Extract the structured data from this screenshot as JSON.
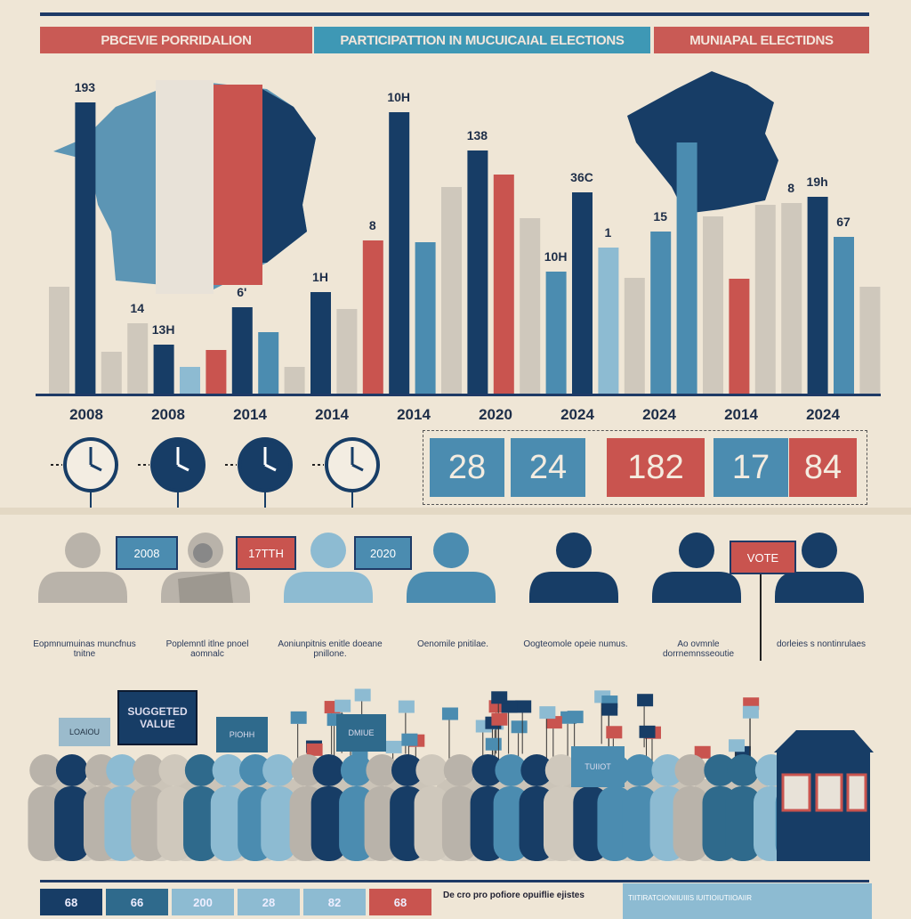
{
  "header": {
    "left": "PBCEVIE PORRIDALION",
    "center": "PARTICIPATTION IN MUCUICAIAL ELECTIONS",
    "right": "MUNIAPAL ELECTIDNS"
  },
  "colors": {
    "navy": "#173d66",
    "blue": "#4b8cb0",
    "light": "#8dbbd2",
    "gray": "#cfc8bc",
    "red": "#c9544f",
    "cream": "#efe6d6"
  },
  "chart_data": {
    "type": "bar",
    "values": [
      121,
      328,
      48,
      80,
      56,
      31,
      50,
      98,
      70,
      31,
      115,
      96,
      173,
      317,
      171,
      233,
      274,
      247,
      198,
      138,
      227,
      165,
      131,
      183,
      283,
      200,
      130,
      213,
      215,
      222,
      177,
      121
    ],
    "bar_colors": [
      "gray",
      "navy",
      "gray",
      "gray",
      "navy",
      "light",
      "red",
      "navy",
      "blue",
      "gray",
      "navy",
      "gray",
      "red",
      "navy",
      "blue",
      "gray",
      "navy",
      "red",
      "gray",
      "blue",
      "navy",
      "light",
      "gray",
      "blue",
      "blue",
      "gray",
      "red",
      "gray",
      "gray",
      "navy",
      "blue",
      "gray"
    ],
    "value_labels": [
      "",
      "193",
      "",
      "14",
      "13H",
      "",
      "",
      "6'",
      "",
      "",
      "1H",
      "",
      "8",
      "10H",
      "",
      "",
      "138",
      "",
      "",
      "10H",
      "36C",
      "1",
      "",
      "15",
      "",
      "",
      "",
      "",
      "8",
      "19h",
      "67",
      ""
    ],
    "x_tick_labels": [
      "2008",
      "2008",
      "2014",
      "2014",
      "2014",
      "2020",
      "2024",
      "2024",
      "2014",
      "2024"
    ]
  },
  "timeline": {
    "clocks": 4,
    "boxes": [
      {
        "v": "28",
        "c": "blue"
      },
      {
        "v": "24",
        "c": "blue"
      },
      {
        "v": "182",
        "c": "red"
      },
      {
        "v": "17",
        "c": "blue"
      },
      {
        "v": "84",
        "c": "red"
      }
    ]
  },
  "people": {
    "tags": [
      "2008",
      "17TTH",
      "2020",
      "VOTE"
    ],
    "figures": [
      "gray",
      "gray",
      "light",
      "blue",
      "navy",
      "navy",
      "navy"
    ],
    "captions": [
      "Eopmnumuinas muncfnus tnitne",
      "Poplemntl itlne pnoel aomnalc",
      "Aoniunpitnis enitle doeane pnillone.",
      "Oenomile pnitilae.",
      "Oogteomole opeie numus.",
      "Ao ovmnle dorrnemnsseoutie",
      "dorleies s nontinrulaes"
    ]
  },
  "crowd": {
    "signs": [
      "SUGGETED VALUE",
      "PIOHH",
      "DMIUE",
      "LOAIOU",
      "TUIIOT"
    ]
  },
  "bottom": {
    "boxes": [
      {
        "v": "68",
        "c": "navy"
      },
      {
        "v": "66",
        "c": "#2f6a8c"
      },
      {
        "v": "200",
        "c": "light"
      },
      {
        "v": "28",
        "c": "light"
      },
      {
        "v": "82",
        "c": "light"
      },
      {
        "v": "68",
        "c": "red"
      }
    ],
    "text": "De cro pro pofiore opuiflie ejistes",
    "note": "TIITIRATCIONIIUIIIS IUITIOIUTIIOAIIR"
  }
}
